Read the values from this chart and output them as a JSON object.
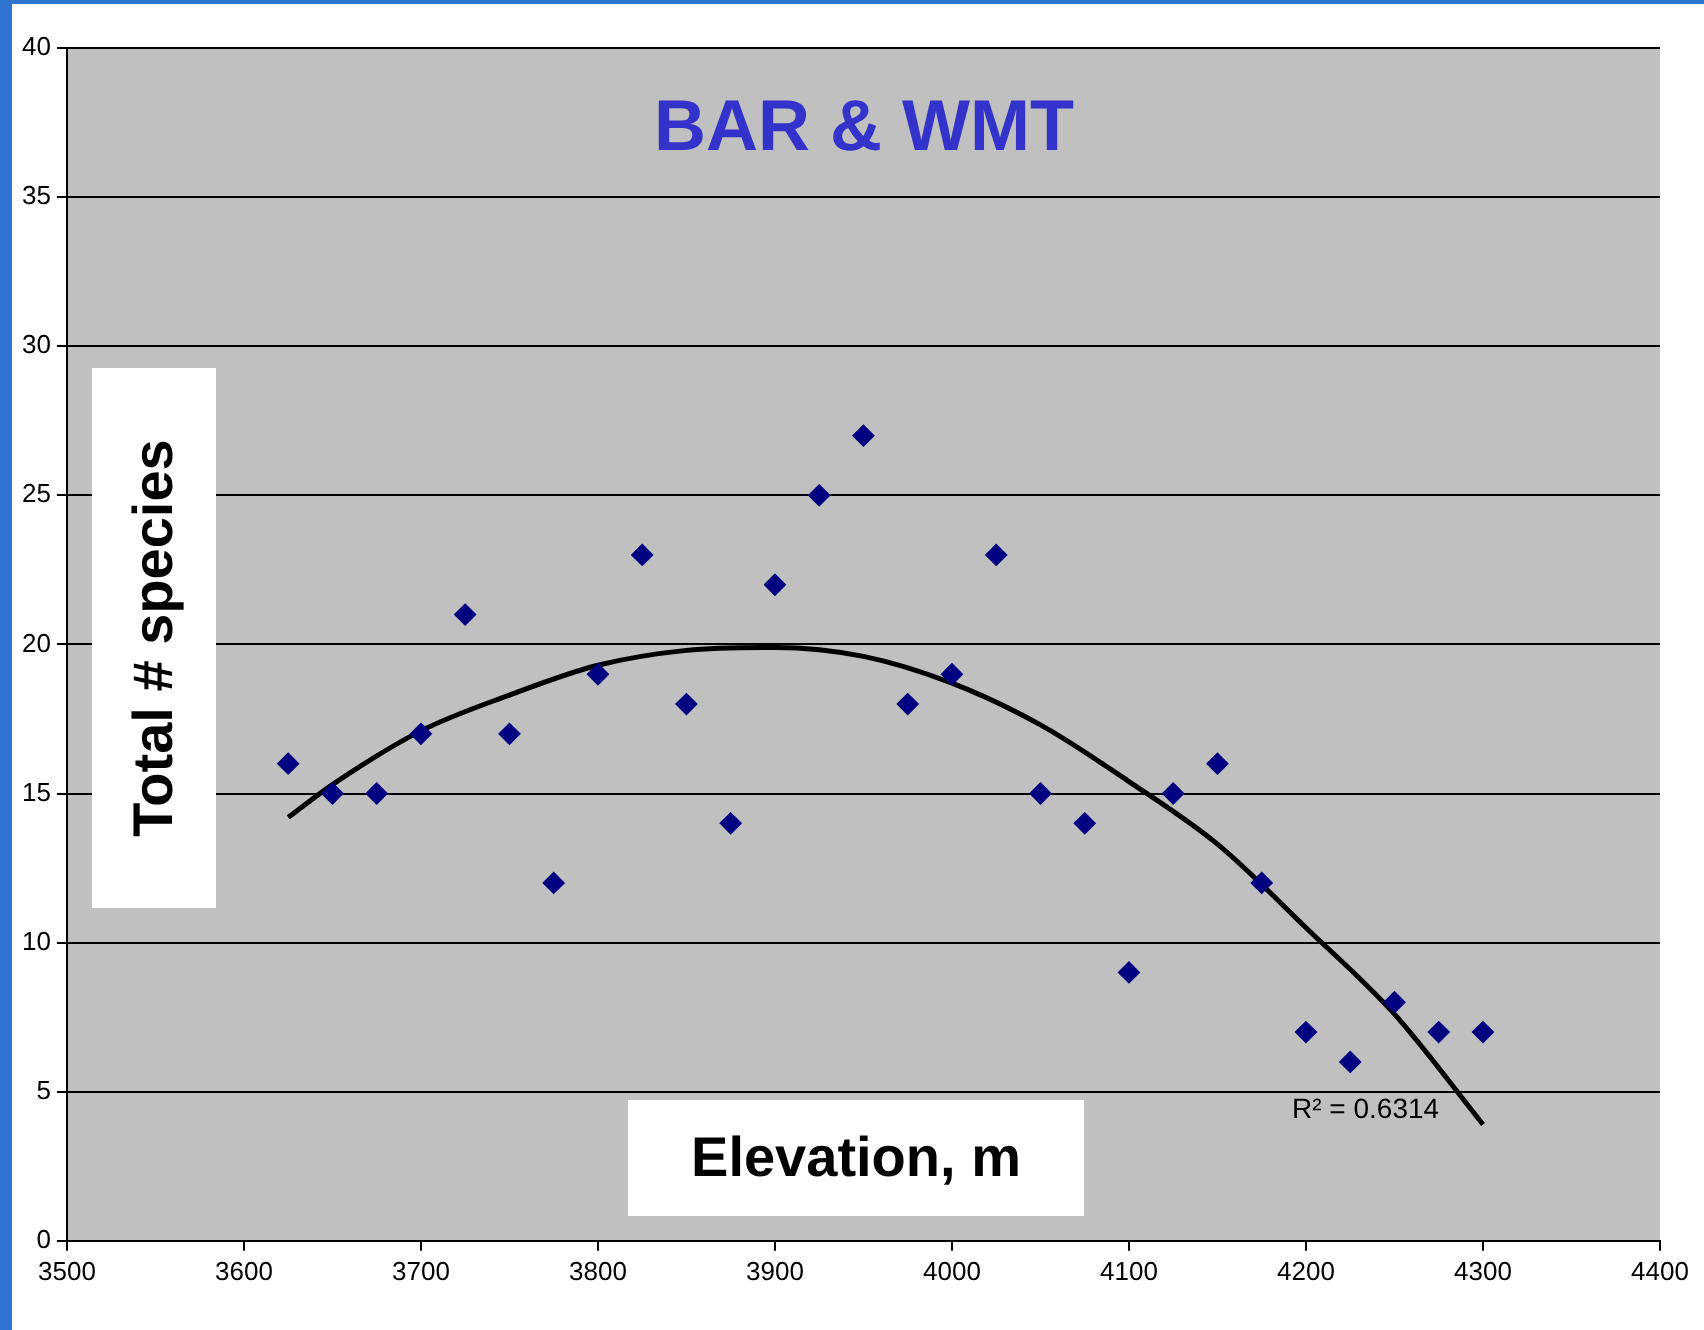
{
  "chart_data": {
    "type": "scatter",
    "title": "BAR & WMT",
    "xlabel": "Elevation, m",
    "ylabel": "Total # species",
    "xlim": [
      3500,
      4400
    ],
    "xticks": [
      3500,
      3600,
      3700,
      3800,
      3900,
      4000,
      4100,
      4200,
      4300,
      4400
    ],
    "ylim": [
      0,
      40
    ],
    "yticks": [
      0,
      5,
      10,
      15,
      20,
      25,
      30,
      35,
      40
    ],
    "grid": "y",
    "marker": "diamond",
    "legend": false,
    "annotations": [
      "R² = 0.6314"
    ],
    "series": [
      {
        "color": "#000080",
        "x": [
          3625,
          3650,
          3675,
          3700,
          3725,
          3750,
          3775,
          3800,
          3825,
          3850,
          3875,
          3900,
          3925,
          3950,
          3975,
          4000,
          4025,
          4050,
          4075,
          4100,
          4125,
          4150,
          4175,
          4200,
          4225,
          4250,
          4275,
          4300
        ],
        "values": [
          16,
          15,
          15,
          17,
          21,
          17,
          12,
          19,
          23,
          18,
          14,
          22,
          25,
          27,
          18,
          19,
          23,
          15,
          14,
          9,
          15,
          16,
          12,
          7,
          6,
          8,
          7,
          7
        ]
      },
      {
        "type": "line",
        "color": "#000000",
        "marker": "none",
        "x": [
          3625,
          3650,
          3700,
          3750,
          3800,
          3850,
          3900,
          3950,
          4000,
          4050,
          4100,
          4150,
          4200,
          4250,
          4300
        ],
        "values": [
          14.2,
          15.3,
          17.1,
          18.3,
          19.3,
          19.8,
          19.9,
          19.6,
          18.7,
          17.3,
          15.4,
          13.3,
          10.5,
          7.6,
          3.9
        ]
      }
    ]
  }
}
